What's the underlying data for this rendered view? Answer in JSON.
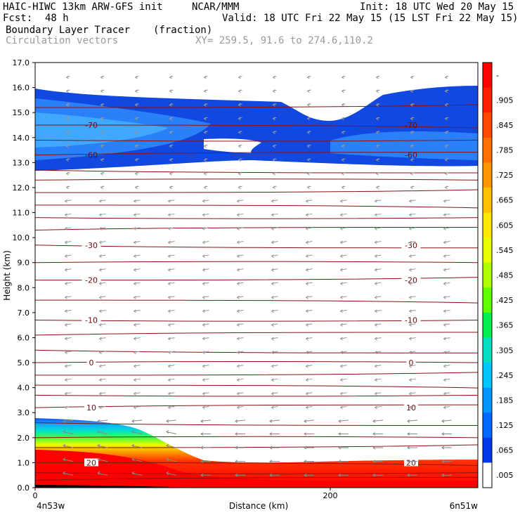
{
  "header": {
    "model": "HAIC-HIWC 13km ARW-GFS init",
    "org": "NCAR/MMM",
    "init": "Init: 18 UTC Wed 20 May 15",
    "fcst_label": "Fcst:",
    "fcst_value": "48 h",
    "valid": "Valid: 18 UTC Fri 22 May 15 (15 LST Fri 22 May 15)",
    "field": "Boundary Layer Tracer",
    "units": "(fraction)",
    "vectors": "Circulation vectors",
    "xy": "XY= 259.5, 91.6 to 274.6,110.2"
  },
  "chart_data": {
    "type": "heatmap",
    "ylabel": "Height (km)",
    "xlabel": "Distance (km)",
    "ylim": [
      0,
      17
    ],
    "xlim": [
      0,
      300
    ],
    "y_ticks": [
      "0.0",
      "1.0",
      "2.0",
      "3.0",
      "4.0",
      "5.0",
      "6.0",
      "7.0",
      "8.0",
      "9.0",
      "10.0",
      "11.0",
      "12.0",
      "13.0",
      "14.0",
      "15.0",
      "16.0",
      "17.0"
    ],
    "x_ticks": [
      {
        "value": 0,
        "label": "0"
      },
      {
        "value": 200,
        "label": "200"
      }
    ],
    "x_end_labels": {
      "left": "4n53w",
      "right": "6n51w"
    },
    "colorbar": {
      "labels": [
        "-",
        ".905",
        ".845",
        ".785",
        ".725",
        ".665",
        ".605",
        ".545",
        ".485",
        ".425",
        ".365",
        ".305",
        ".245",
        ".185",
        ".125",
        ".065",
        ".005"
      ],
      "colors": [
        "#ff0000",
        "#ff2000",
        "#ff4800",
        "#ff7000",
        "#ff9800",
        "#ffc000",
        "#ffe800",
        "#e8ff00",
        "#b0ff00",
        "#60ff00",
        "#00f050",
        "#00e0c0",
        "#00c8ff",
        "#0098ff",
        "#0068ff",
        "#0038e8",
        "#ffffff"
      ]
    },
    "temperature_contours": [
      {
        "label": "-70",
        "height": 14.5
      },
      {
        "label": "-60",
        "height": 13.3
      },
      {
        "label": "-30",
        "height": 9.7
      },
      {
        "label": "-20",
        "height": 8.3
      },
      {
        "label": "-10",
        "height": 6.7
      },
      {
        "label": "0",
        "height": 5.0
      },
      {
        "label": "10",
        "height": 3.2
      },
      {
        "label": "20",
        "height": 1.0
      }
    ]
  }
}
